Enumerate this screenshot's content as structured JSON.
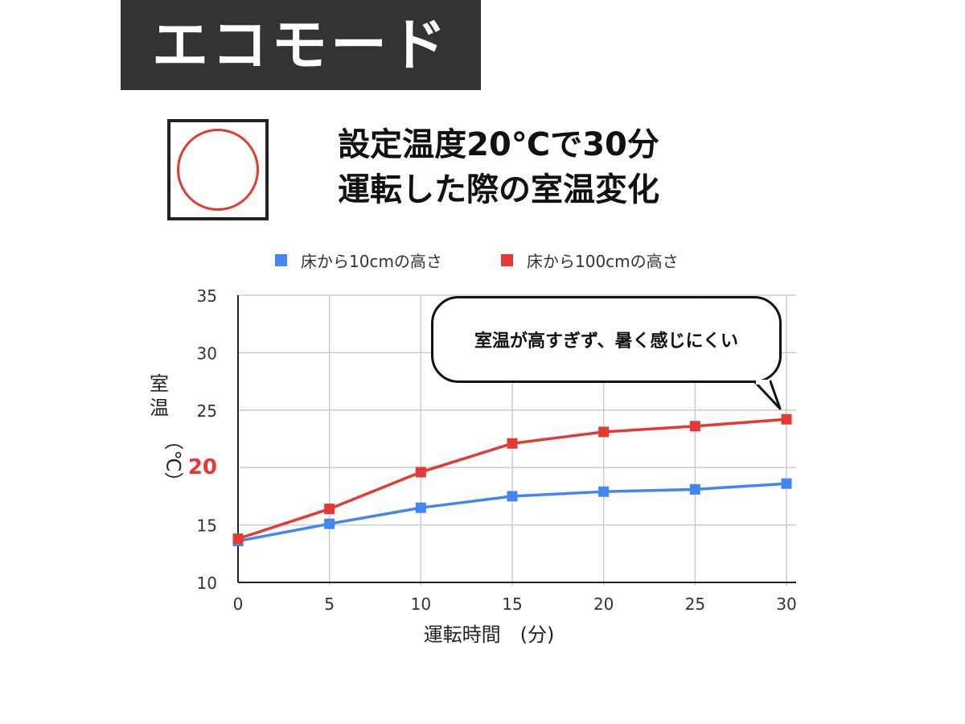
{
  "banner": {
    "title": "エコモード"
  },
  "headline": {
    "line1": "設定温度20℃で30分",
    "line2": "運転した際の室温変化"
  },
  "rating_icon": "circle-mark-icon",
  "callout": {
    "text": "室温が高すぎず、暑く感じにくい"
  },
  "y_axis_title": {
    "chars": [
      "室",
      "温"
    ],
    "unit": "（℃）"
  },
  "colors": {
    "banner_bg": "#333333",
    "series_10cm": "#4285f4",
    "series_100cm": "#e53935",
    "highlight_tick": "#e53935",
    "grid": "#cccccc"
  },
  "chart_data": {
    "type": "line",
    "title": "",
    "xlabel": "運転時間　(分)",
    "ylabel": "室温（℃）",
    "x": [
      0,
      5,
      10,
      15,
      20,
      25,
      30
    ],
    "xlim": [
      0,
      30
    ],
    "ylim": [
      10,
      35
    ],
    "x_ticks": [
      "0",
      "5",
      "10",
      "15",
      "20",
      "25",
      "30"
    ],
    "y_ticks": [
      "10",
      "15",
      "20",
      "25",
      "30",
      "35"
    ],
    "highlighted_y_tick": "20",
    "grid": true,
    "legend_position": "top",
    "series": [
      {
        "name": "床から10cmの高さ",
        "values": [
          13.6,
          15.1,
          16.5,
          17.5,
          17.9,
          18.1,
          18.6
        ]
      },
      {
        "name": "床から100cmの高さ",
        "values": [
          13.8,
          16.4,
          19.6,
          22.1,
          23.1,
          23.6,
          24.2
        ]
      }
    ]
  }
}
